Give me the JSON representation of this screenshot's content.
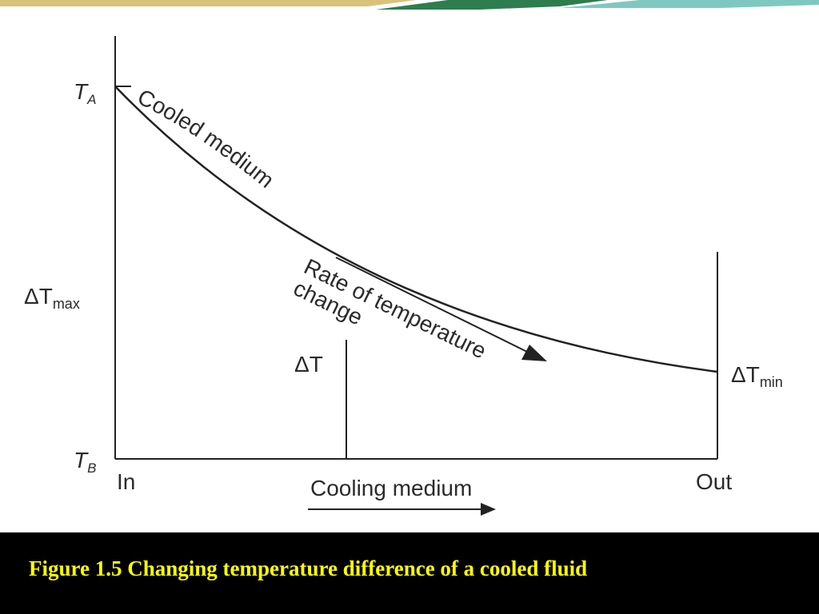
{
  "slide": {
    "banner": {
      "accent_green": "#2e7d4f",
      "accent_gold": "#c9a227",
      "accent_teal": "#5fb8b0"
    },
    "caption": {
      "text": "Figure 1.5 Changing temperature difference of a cooled fluid",
      "color": "#ffff00",
      "background": "#000000"
    }
  },
  "diagram": {
    "labels": {
      "t_a_main": "T",
      "t_a_sub": "A",
      "t_b_main": "T",
      "t_b_sub": "B",
      "delta_t_max_main": "ΔT",
      "delta_t_max_sub": "max",
      "delta_t_min_main": "ΔT",
      "delta_t_min_sub": "min",
      "delta_t": "ΔT",
      "in": "In",
      "out": "Out",
      "cooling_medium": "Cooling medium",
      "cooled_medium": "Cooled medium",
      "rate_line1": "Rate of temperature",
      "rate_line2": "change"
    },
    "line_color": "#222222"
  }
}
